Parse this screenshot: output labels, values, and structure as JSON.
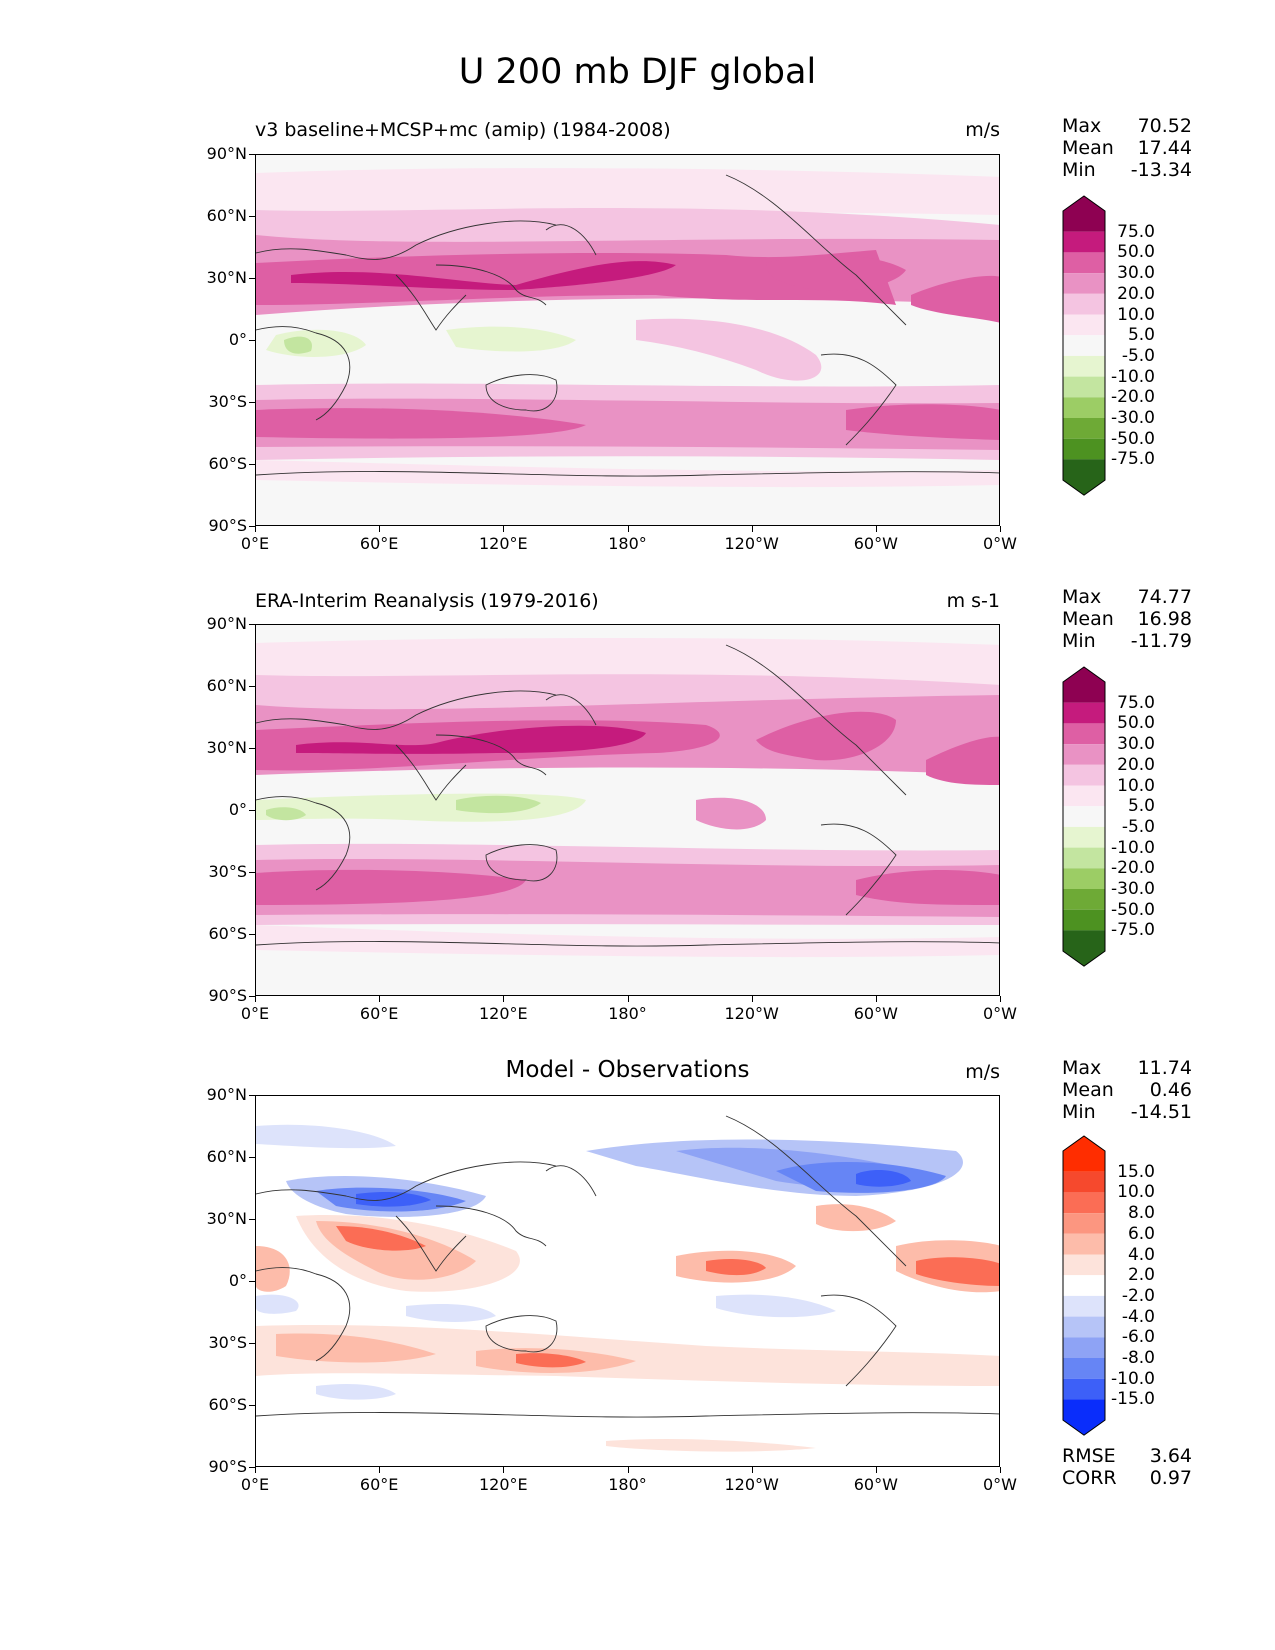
{
  "title": "U 200 mb DJF global",
  "panels": [
    {
      "title": "v3 baseline+MCSP+mc (amip) (1984-2008)",
      "units": "m/s",
      "stats": [
        [
          "Max",
          "70.52"
        ],
        [
          "Mean",
          "17.44"
        ],
        [
          "Min",
          "-13.34"
        ]
      ],
      "colorbar_labels": [
        "75.0",
        "50.0",
        "30.0",
        "20.0",
        "10.0",
        "5.0",
        "-5.0",
        "-10.0",
        "-20.0",
        "-30.0",
        "-50.0",
        "-75.0"
      ],
      "colors": [
        "#8e0152",
        "#c51b7d",
        "#de5fa4",
        "#e992c4",
        "#f4c4e1",
        "#fbe6f1",
        "#f7f7f7",
        "#e6f5d0",
        "#c3e5a0",
        "#9ccd65",
        "#6eaa36",
        "#4d9221",
        "#276419"
      ]
    },
    {
      "title": "ERA-Interim Reanalysis (1979-2016)",
      "units": "m s-1",
      "stats": [
        [
          "Max",
          "74.77"
        ],
        [
          "Mean",
          "16.98"
        ],
        [
          "Min",
          "-11.79"
        ]
      ],
      "colorbar_labels": [
        "75.0",
        "50.0",
        "30.0",
        "20.0",
        "10.0",
        "5.0",
        "-5.0",
        "-10.0",
        "-20.0",
        "-30.0",
        "-50.0",
        "-75.0"
      ],
      "colors": [
        "#8e0152",
        "#c51b7d",
        "#de5fa4",
        "#e992c4",
        "#f4c4e1",
        "#fbe6f1",
        "#f7f7f7",
        "#e6f5d0",
        "#c3e5a0",
        "#9ccd65",
        "#6eaa36",
        "#4d9221",
        "#276419"
      ]
    },
    {
      "title": "Model - Observations",
      "units": "m/s",
      "stats": [
        [
          "Max",
          "11.74"
        ],
        [
          "Mean",
          "0.46"
        ],
        [
          "Min",
          "-14.51"
        ]
      ],
      "colorbar_labels": [
        "15.0",
        "10.0",
        "8.0",
        "6.0",
        "4.0",
        "2.0",
        "-2.0",
        "-4.0",
        "-6.0",
        "-8.0",
        "-10.0",
        "-15.0"
      ],
      "colors": [
        "#ff2d00",
        "#f6492d",
        "#fb6d55",
        "#fc9680",
        "#fdbcaa",
        "#fde3db",
        "#ffffff",
        "#dde3fb",
        "#b6c4f7",
        "#8ea3f5",
        "#6685f5",
        "#3d60f8",
        "#0a2dfb"
      ],
      "metrics": [
        [
          "RMSE",
          "3.64"
        ],
        [
          "CORR",
          "0.97"
        ]
      ]
    }
  ],
  "y_ticks": [
    "90°N",
    "60°N",
    "30°N",
    "0°",
    "30°S",
    "60°S",
    "90°S"
  ],
  "x_ticks": [
    "0°E",
    "60°E",
    "120°E",
    "180°",
    "120°W",
    "60°W",
    "0°W"
  ]
}
